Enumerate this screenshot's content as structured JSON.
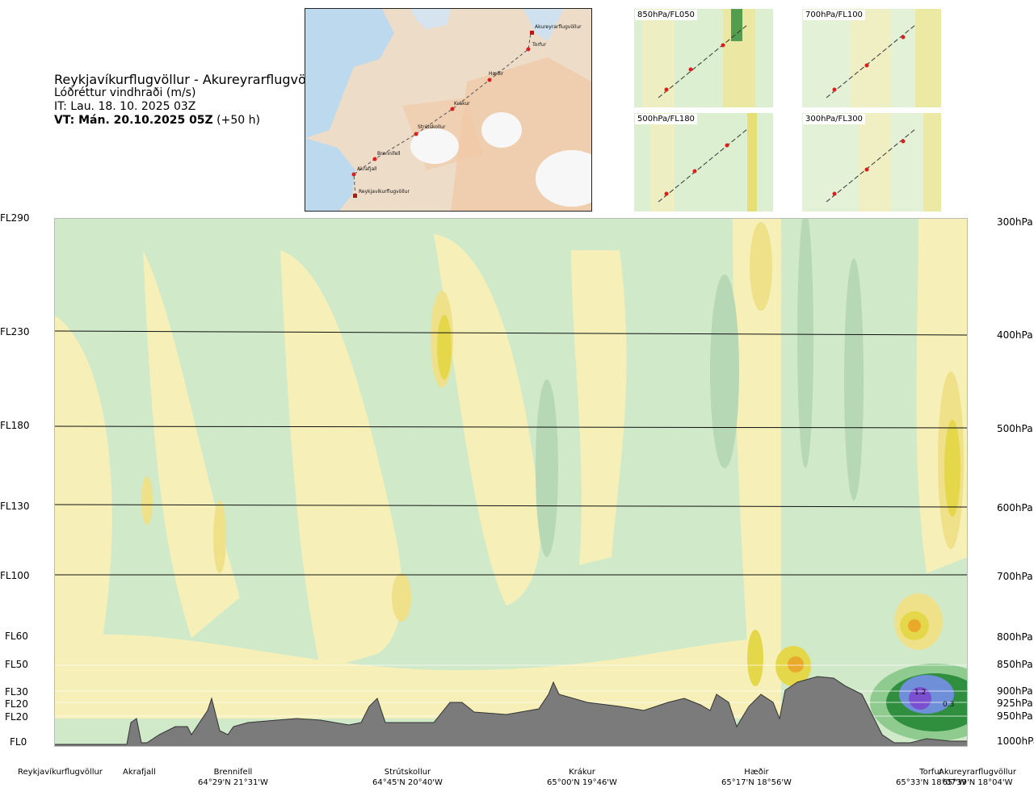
{
  "header": {
    "route_title": "Reykjavíkurflugvöllur - Akureyrarflugvöllur",
    "variable": "Lóðréttur vindhraði (m/s)",
    "issue_time": "IT: Lau. 18. 10. 2025 03Z",
    "valid_prefix": "VT: Mán. 20.10.2025 05Z",
    "valid_offset": "(+50 h)"
  },
  "map": {
    "waypoints": [
      "Akureyrarflugvöllur",
      "Torfur",
      "Hæðir",
      "Krákur",
      "Strútskollur",
      "Brennifell",
      "Akrafjall",
      "Reykjavíkurflugvöllur"
    ]
  },
  "mini_panels": [
    {
      "label": "850hPa/FL050"
    },
    {
      "label": "700hPa/FL100"
    },
    {
      "label": "500hPa/FL180"
    },
    {
      "label": "300hPa/FL300"
    }
  ],
  "cross_section": {
    "left_levels": [
      "FL290",
      "FL230",
      "FL180",
      "FL130",
      "FL100",
      "FL60",
      "FL50",
      "FL30",
      "FL20",
      "FL20",
      "FL0"
    ],
    "right_levels": [
      "300hPa",
      "400hPa",
      "500hPa",
      "600hPa",
      "700hPa",
      "800hPa",
      "850hPa",
      "900hPa",
      "925hPa",
      "950hPa",
      "1000hPa"
    ],
    "value_labels": [
      "1.2",
      "0.3"
    ],
    "colors": {
      "pos_light": "#f6f0b8",
      "pos_mid": "#efe08a",
      "pos_strong": "#e4d84a",
      "neg_light": "#d2ebcd",
      "neg_mid": "#b7d8b4",
      "neg_strong": "#2f8f3f",
      "terrain": "#7b7b7b"
    }
  },
  "x_stations": [
    {
      "name": "Reykjavíkurflugvöllur",
      "coord": ""
    },
    {
      "name": "Akrafjall",
      "coord": ""
    },
    {
      "name": "Brennifell",
      "coord": "64°29'N 21°31'W"
    },
    {
      "name": "Strútskollur",
      "coord": "64°45'N 20°40'W"
    },
    {
      "name": "Krákur",
      "coord": "65°00'N 19°46'W"
    },
    {
      "name": "Hæðir",
      "coord": "65°17'N 18°56'W"
    },
    {
      "name": "Torfur",
      "coord": "65°33'N 18°07'W"
    },
    {
      "name": "Akureyrarflugvöllur",
      "coord": "65°39'N 18°04'W"
    }
  ]
}
